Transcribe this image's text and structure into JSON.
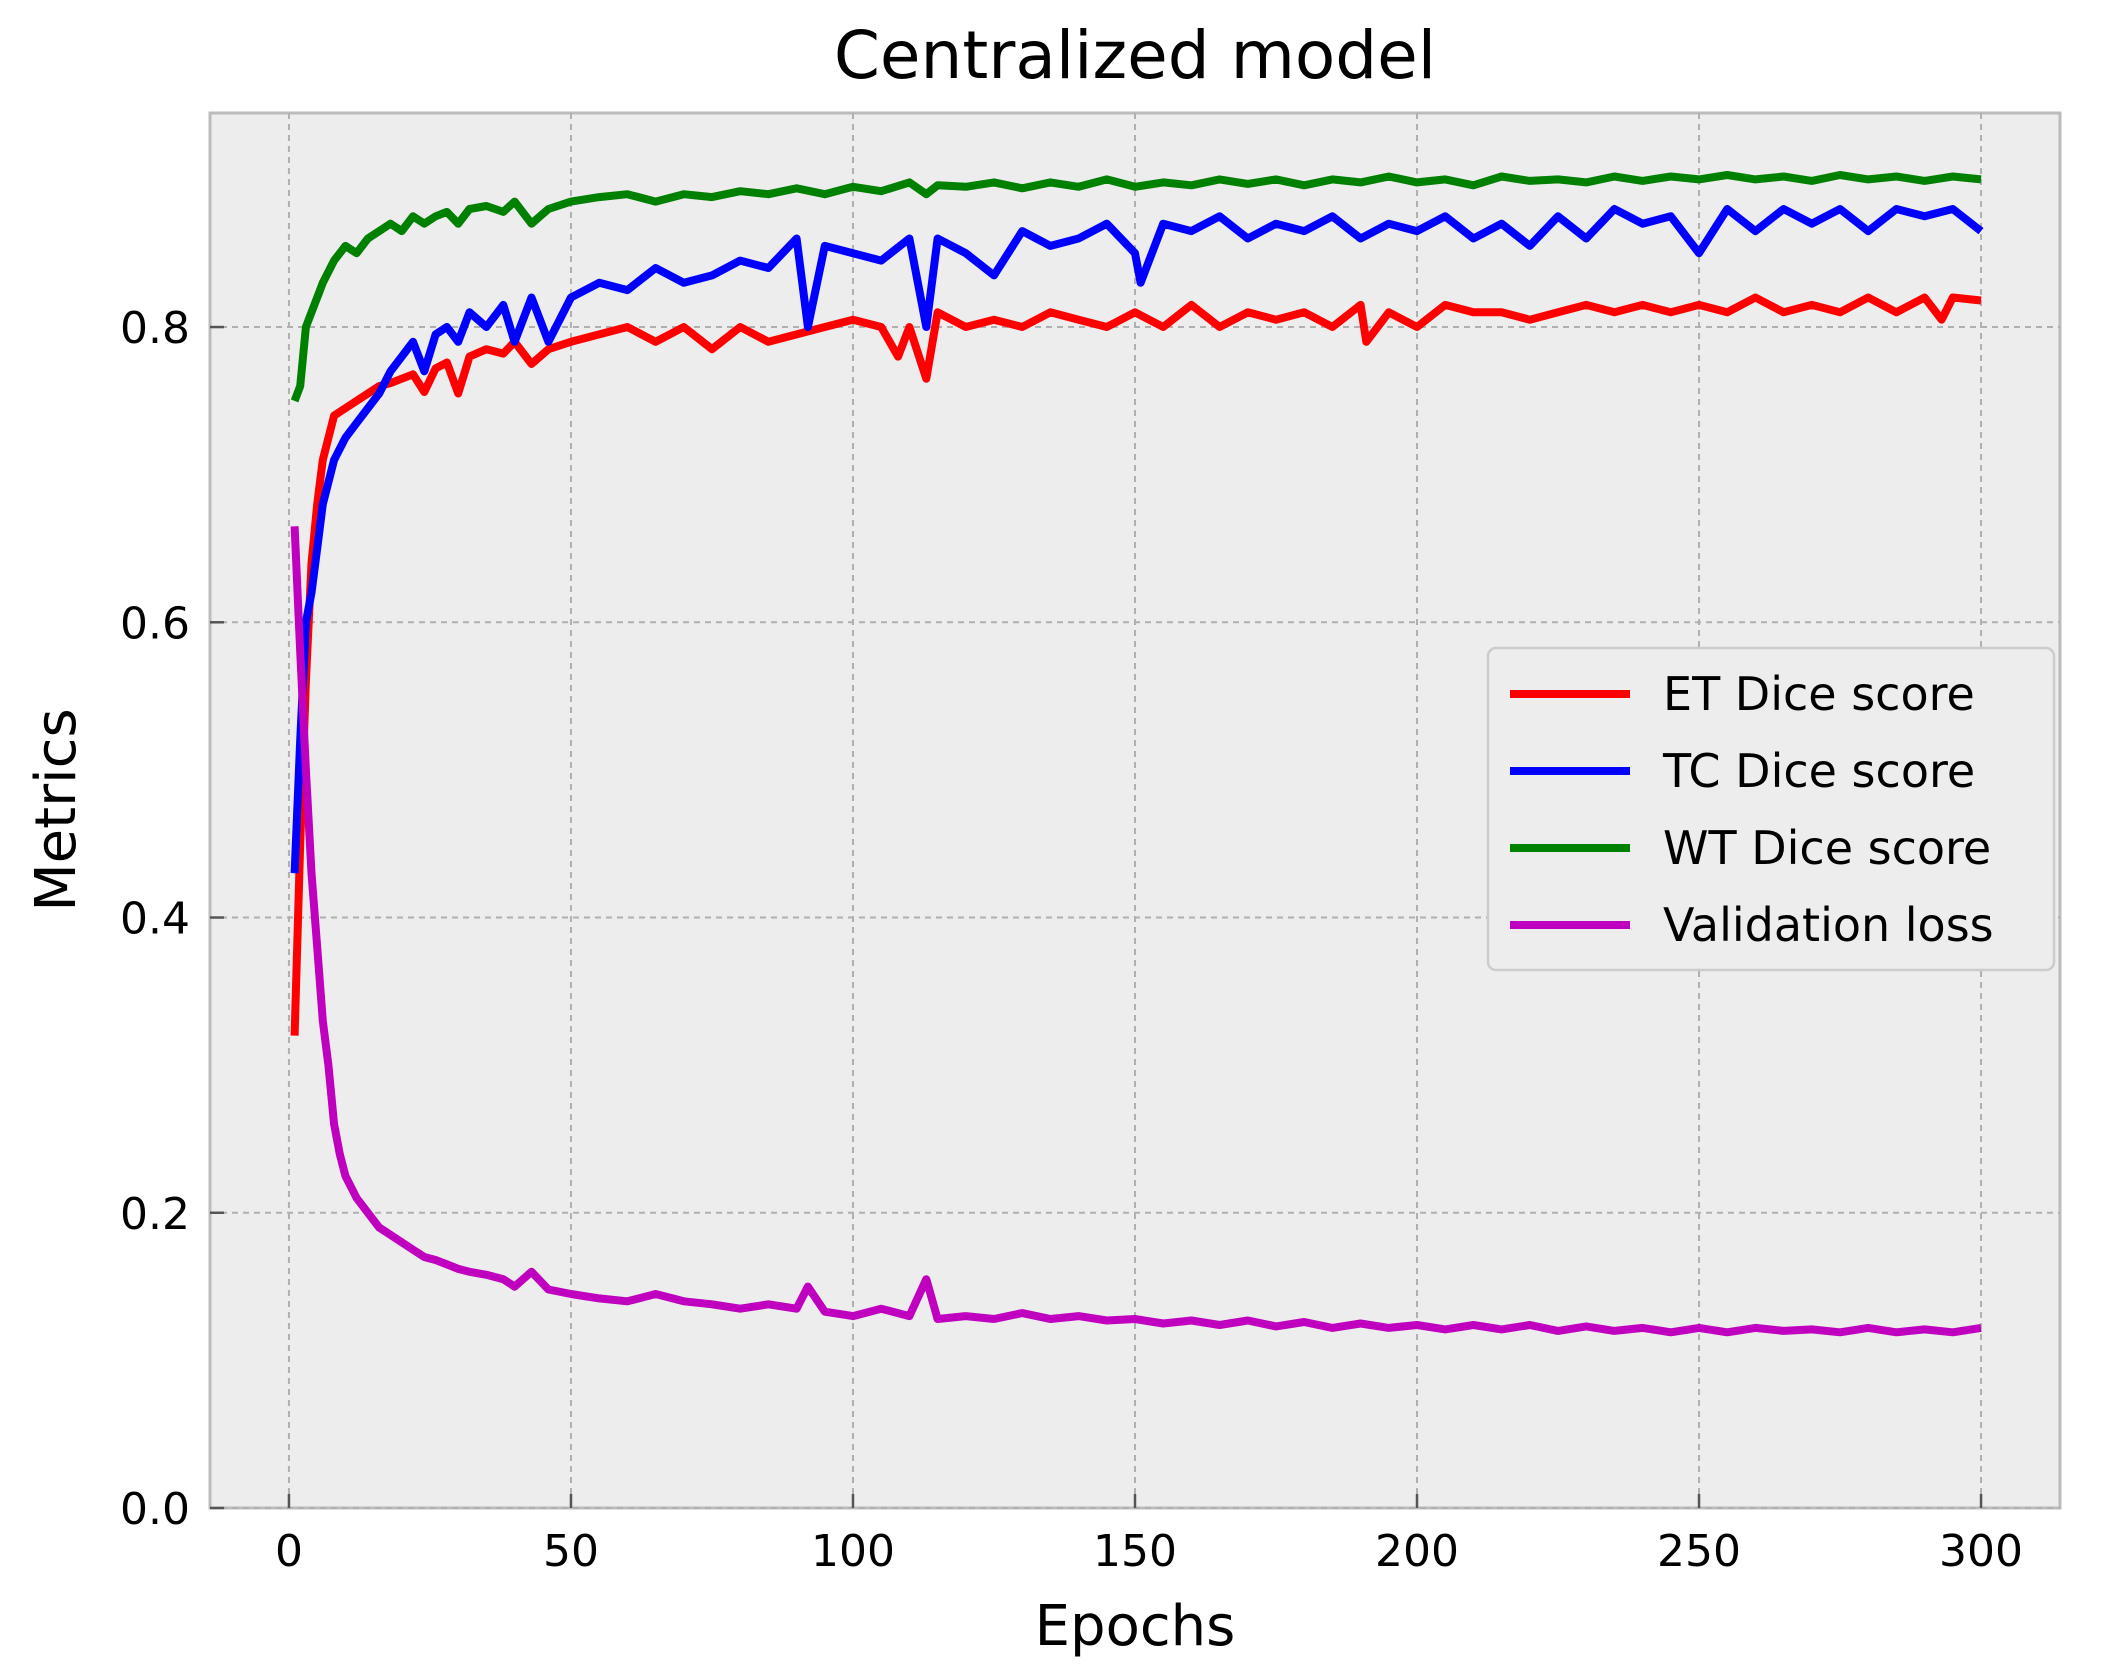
{
  "chart_data": {
    "type": "line",
    "title": "Centralized model",
    "xlabel": "Epochs",
    "ylabel": "Metrics",
    "xlim": [
      -14,
      314
    ],
    "ylim": [
      0.0,
      0.945
    ],
    "xticks": [
      0,
      50,
      100,
      150,
      200,
      250,
      300
    ],
    "xtick_labels": [
      "0",
      "50",
      "100",
      "150",
      "200",
      "250",
      "300"
    ],
    "yticks": [
      0.0,
      0.2,
      0.4,
      0.6,
      0.8
    ],
    "ytick_labels": [
      "0.0",
      "0.2",
      "0.4",
      "0.6",
      "0.8"
    ],
    "grid": true,
    "legend_position": "center-right",
    "series": [
      {
        "name": "ET Dice score",
        "color": "#ff0000",
        "x": [
          1,
          2,
          3,
          4,
          5,
          6,
          8,
          10,
          12,
          14,
          16,
          18,
          20,
          22,
          24,
          26,
          28,
          30,
          32,
          35,
          38,
          40,
          43,
          46,
          50,
          55,
          60,
          65,
          70,
          75,
          80,
          85,
          90,
          95,
          100,
          105,
          108,
          110,
          113,
          115,
          120,
          125,
          130,
          135,
          140,
          145,
          150,
          155,
          160,
          165,
          170,
          175,
          180,
          185,
          190,
          191,
          195,
          200,
          205,
          210,
          215,
          220,
          225,
          230,
          235,
          240,
          245,
          250,
          255,
          260,
          265,
          270,
          275,
          280,
          285,
          290,
          293,
          295,
          300
        ],
        "values": [
          0.32,
          0.45,
          0.56,
          0.64,
          0.68,
          0.71,
          0.74,
          0.745,
          0.75,
          0.755,
          0.76,
          0.762,
          0.765,
          0.768,
          0.756,
          0.772,
          0.776,
          0.755,
          0.78,
          0.785,
          0.782,
          0.79,
          0.775,
          0.785,
          0.79,
          0.795,
          0.8,
          0.79,
          0.8,
          0.785,
          0.8,
          0.79,
          0.795,
          0.8,
          0.805,
          0.8,
          0.78,
          0.8,
          0.765,
          0.81,
          0.8,
          0.805,
          0.8,
          0.81,
          0.805,
          0.8,
          0.81,
          0.8,
          0.815,
          0.8,
          0.81,
          0.805,
          0.81,
          0.8,
          0.815,
          0.79,
          0.81,
          0.8,
          0.815,
          0.81,
          0.81,
          0.805,
          0.81,
          0.815,
          0.81,
          0.815,
          0.81,
          0.815,
          0.81,
          0.82,
          0.81,
          0.815,
          0.81,
          0.82,
          0.81,
          0.82,
          0.805,
          0.82,
          0.818
        ]
      },
      {
        "name": "TC Dice score",
        "color": "#0000ff",
        "x": [
          1,
          2,
          3,
          4,
          5,
          6,
          8,
          10,
          12,
          14,
          16,
          18,
          20,
          22,
          24,
          26,
          28,
          30,
          32,
          35,
          38,
          40,
          43,
          46,
          50,
          55,
          60,
          65,
          70,
          75,
          80,
          85,
          90,
          92,
          95,
          100,
          105,
          110,
          113,
          115,
          120,
          125,
          130,
          135,
          140,
          145,
          150,
          151,
          155,
          160,
          165,
          170,
          175,
          180,
          185,
          190,
          195,
          200,
          205,
          210,
          215,
          220,
          225,
          230,
          235,
          240,
          245,
          250,
          255,
          260,
          265,
          270,
          275,
          280,
          285,
          290,
          295,
          300
        ],
        "values": [
          0.43,
          0.52,
          0.6,
          0.62,
          0.65,
          0.68,
          0.71,
          0.725,
          0.735,
          0.745,
          0.755,
          0.77,
          0.78,
          0.79,
          0.77,
          0.795,
          0.8,
          0.79,
          0.81,
          0.8,
          0.815,
          0.79,
          0.82,
          0.79,
          0.82,
          0.83,
          0.825,
          0.84,
          0.83,
          0.835,
          0.845,
          0.84,
          0.86,
          0.8,
          0.855,
          0.85,
          0.845,
          0.86,
          0.8,
          0.86,
          0.85,
          0.835,
          0.865,
          0.855,
          0.86,
          0.87,
          0.85,
          0.83,
          0.87,
          0.865,
          0.875,
          0.86,
          0.87,
          0.865,
          0.875,
          0.86,
          0.87,
          0.865,
          0.875,
          0.86,
          0.87,
          0.855,
          0.875,
          0.86,
          0.88,
          0.87,
          0.875,
          0.85,
          0.88,
          0.865,
          0.88,
          0.87,
          0.88,
          0.865,
          0.88,
          0.875,
          0.88,
          0.865
        ]
      },
      {
        "name": "WT Dice score",
        "color": "#008000",
        "x": [
          1,
          2,
          3,
          4,
          5,
          6,
          8,
          10,
          12,
          14,
          16,
          18,
          20,
          22,
          24,
          26,
          28,
          30,
          32,
          35,
          38,
          40,
          43,
          46,
          50,
          55,
          60,
          65,
          70,
          75,
          80,
          85,
          90,
          95,
          100,
          105,
          110,
          113,
          115,
          120,
          125,
          130,
          135,
          140,
          145,
          150,
          155,
          160,
          165,
          170,
          175,
          180,
          185,
          190,
          195,
          200,
          205,
          210,
          215,
          220,
          225,
          230,
          235,
          240,
          245,
          250,
          255,
          260,
          265,
          270,
          275,
          280,
          285,
          290,
          295,
          300
        ],
        "values": [
          0.75,
          0.76,
          0.8,
          0.81,
          0.82,
          0.83,
          0.845,
          0.855,
          0.85,
          0.86,
          0.865,
          0.87,
          0.865,
          0.875,
          0.87,
          0.875,
          0.878,
          0.87,
          0.88,
          0.882,
          0.878,
          0.885,
          0.87,
          0.88,
          0.885,
          0.888,
          0.89,
          0.885,
          0.89,
          0.888,
          0.892,
          0.89,
          0.894,
          0.89,
          0.895,
          0.892,
          0.898,
          0.89,
          0.896,
          0.895,
          0.898,
          0.894,
          0.898,
          0.895,
          0.9,
          0.895,
          0.898,
          0.896,
          0.9,
          0.897,
          0.9,
          0.896,
          0.9,
          0.898,
          0.902,
          0.898,
          0.9,
          0.896,
          0.902,
          0.899,
          0.9,
          0.898,
          0.902,
          0.899,
          0.902,
          0.9,
          0.903,
          0.9,
          0.902,
          0.899,
          0.903,
          0.9,
          0.902,
          0.899,
          0.902,
          0.9
        ]
      },
      {
        "name": "Validation loss",
        "color": "#bf00bf",
        "x": [
          1,
          2,
          3,
          4,
          5,
          6,
          7,
          8,
          9,
          10,
          12,
          14,
          16,
          18,
          20,
          22,
          24,
          26,
          28,
          30,
          32,
          35,
          38,
          40,
          43,
          46,
          50,
          55,
          60,
          65,
          70,
          75,
          80,
          85,
          90,
          92,
          95,
          100,
          105,
          110,
          113,
          115,
          120,
          125,
          130,
          135,
          140,
          145,
          150,
          155,
          160,
          165,
          170,
          175,
          180,
          185,
          190,
          195,
          200,
          205,
          210,
          215,
          220,
          225,
          230,
          235,
          240,
          245,
          250,
          255,
          260,
          265,
          270,
          275,
          280,
          285,
          290,
          295,
          300
        ],
        "values": [
          0.665,
          0.58,
          0.5,
          0.43,
          0.38,
          0.33,
          0.3,
          0.26,
          0.24,
          0.225,
          0.21,
          0.2,
          0.19,
          0.185,
          0.18,
          0.175,
          0.17,
          0.168,
          0.165,
          0.162,
          0.16,
          0.158,
          0.155,
          0.15,
          0.16,
          0.148,
          0.145,
          0.142,
          0.14,
          0.145,
          0.14,
          0.138,
          0.135,
          0.138,
          0.135,
          0.15,
          0.133,
          0.13,
          0.135,
          0.13,
          0.155,
          0.128,
          0.13,
          0.128,
          0.132,
          0.128,
          0.13,
          0.127,
          0.128,
          0.125,
          0.127,
          0.124,
          0.127,
          0.123,
          0.126,
          0.122,
          0.125,
          0.122,
          0.124,
          0.121,
          0.124,
          0.121,
          0.124,
          0.12,
          0.123,
          0.12,
          0.122,
          0.119,
          0.122,
          0.119,
          0.122,
          0.12,
          0.121,
          0.119,
          0.122,
          0.119,
          0.121,
          0.119,
          0.122
        ]
      }
    ]
  }
}
